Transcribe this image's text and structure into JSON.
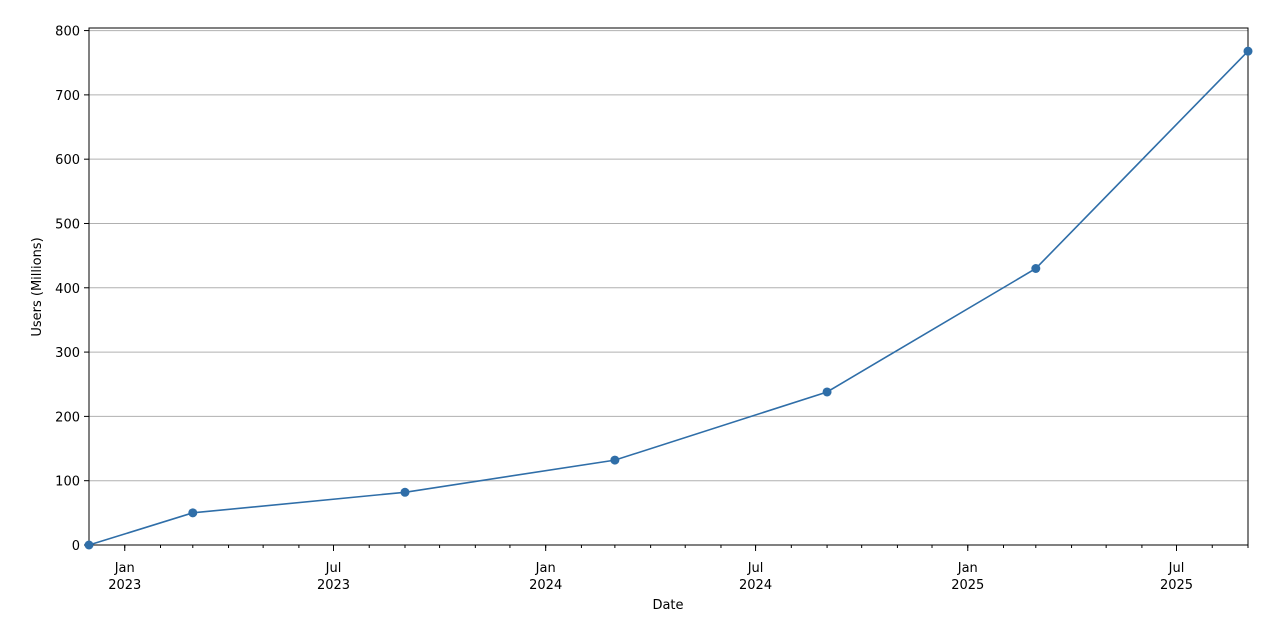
{
  "chart_data": {
    "type": "line",
    "x_label": "Date",
    "y_label": "Users (Millions)",
    "x": [
      "2022-12",
      "2023-03",
      "2023-09",
      "2024-03",
      "2024-09",
      "2025-03",
      "2025-09"
    ],
    "series": [
      {
        "name": "Users",
        "color": "#2f6ea8",
        "values": [
          0,
          50,
          82,
          132,
          238,
          430,
          768
        ]
      }
    ],
    "xlim": [
      "2022-12",
      "2025-09"
    ],
    "xticks": [
      {
        "value": "2023-01",
        "label": "Jan\n2023"
      },
      {
        "value": "2023-07",
        "label": "Jul\n2023"
      },
      {
        "value": "2024-01",
        "label": "Jan\n2024"
      },
      {
        "value": "2024-07",
        "label": "Jul\n2024"
      },
      {
        "value": "2025-01",
        "label": "Jan\n2025"
      },
      {
        "value": "2025-07",
        "label": "Jul\n2025"
      }
    ],
    "ylim": [
      0,
      804
    ],
    "yticks": [
      0,
      100,
      200,
      300,
      400,
      500,
      600,
      700,
      800
    ],
    "grid": true,
    "marker": "circle"
  }
}
